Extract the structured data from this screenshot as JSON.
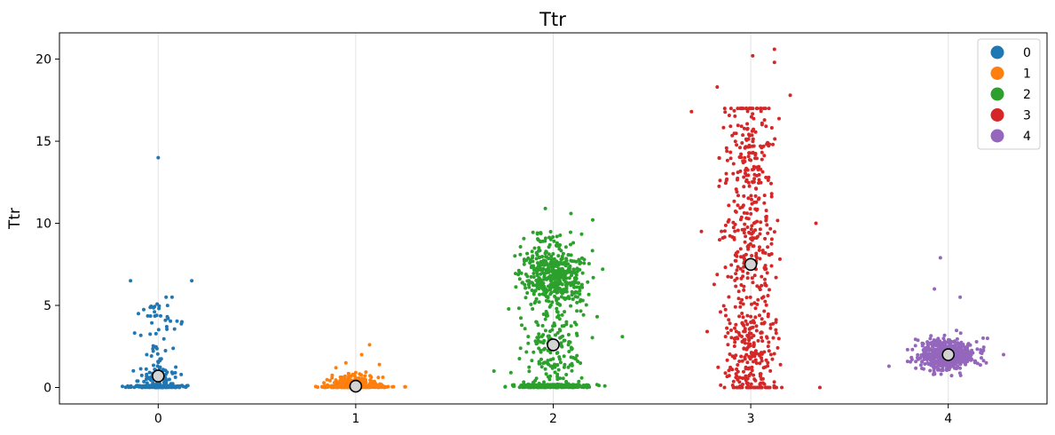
{
  "chart_data": {
    "type": "scatter",
    "title": "Ttr",
    "xlabel": "",
    "ylabel": "Ttr",
    "x_ticks": [
      "0",
      "1",
      "2",
      "3",
      "4"
    ],
    "y_ticks": [
      "0",
      "5",
      "10",
      "15",
      "20"
    ],
    "xlim": [
      -0.5,
      4.5
    ],
    "ylim": [
      -1.0,
      21.6
    ],
    "grid": "vertical",
    "legend_placement": "top-right",
    "series": [
      {
        "name": "0",
        "color": "#1f77b4",
        "center": 0,
        "n": 260,
        "zero_frac": 0.62,
        "mean": 0.7,
        "extra": [
          [
            0,
            14.0
          ],
          [
            -0.14,
            6.5
          ],
          [
            0.17,
            6.5
          ],
          [
            0.04,
            5.5
          ],
          [
            0.07,
            5.5
          ],
          [
            -0.1,
            4.5
          ],
          [
            0.05,
            4.2
          ],
          [
            0.12,
            4.0
          ]
        ]
      },
      {
        "name": "1",
        "color": "#ff7f0e",
        "center": 1,
        "n": 380,
        "zero_frac": 0.6,
        "mean": 0.08,
        "extra": [
          [
            0.07,
            2.6
          ],
          [
            0.03,
            2.0
          ],
          [
            -0.05,
            1.5
          ],
          [
            0.12,
            1.4
          ],
          [
            -0.1,
            1.2
          ]
        ]
      },
      {
        "name": "2",
        "color": "#2ca02c",
        "center": 2,
        "n": 950,
        "zero_frac": 0.32,
        "mean": 2.6,
        "extra": [
          [
            -0.04,
            10.9
          ],
          [
            0.09,
            10.6
          ],
          [
            0.2,
            10.2
          ],
          [
            0.35,
            3.1
          ],
          [
            -0.3,
            1.0
          ],
          [
            0.25,
            7.2
          ]
        ]
      },
      {
        "name": "3",
        "color": "#d62728",
        "center": 3,
        "n": 620,
        "zero_frac": 0.1,
        "mean": 7.5,
        "extra": [
          [
            0.12,
            20.6
          ],
          [
            0.01,
            20.2
          ],
          [
            0.12,
            19.8
          ],
          [
            -0.17,
            18.3
          ],
          [
            -0.3,
            16.8
          ],
          [
            0.2,
            17.8
          ],
          [
            0.33,
            10.0
          ],
          [
            0.35,
            0.0
          ],
          [
            -0.25,
            9.5
          ]
        ]
      },
      {
        "name": "4",
        "color": "#9467bd",
        "center": 4,
        "n": 520,
        "zero_frac": 0.0,
        "mean": 2.0,
        "extra": [
          [
            -0.04,
            7.9
          ],
          [
            -0.07,
            6.0
          ],
          [
            0.06,
            5.5
          ],
          [
            -0.3,
            1.3
          ],
          [
            0.28,
            2.0
          ]
        ]
      }
    ]
  }
}
